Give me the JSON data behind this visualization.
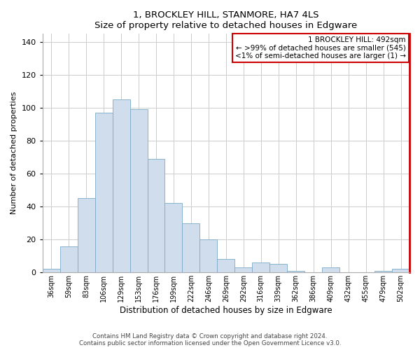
{
  "title": "1, BROCKLEY HILL, STANMORE, HA7 4LS",
  "subtitle": "Size of property relative to detached houses in Edgware",
  "xlabel": "Distribution of detached houses by size in Edgware",
  "ylabel": "Number of detached properties",
  "bar_color": "#cfdded",
  "bar_edge_color": "#7aaac8",
  "grid_color": "#cccccc",
  "bin_labels": [
    "36sqm",
    "59sqm",
    "83sqm",
    "106sqm",
    "129sqm",
    "153sqm",
    "176sqm",
    "199sqm",
    "222sqm",
    "246sqm",
    "269sqm",
    "292sqm",
    "316sqm",
    "339sqm",
    "362sqm",
    "386sqm",
    "409sqm",
    "432sqm",
    "455sqm",
    "479sqm",
    "502sqm"
  ],
  "bar_heights": [
    2,
    16,
    45,
    97,
    105,
    99,
    69,
    42,
    30,
    20,
    8,
    3,
    6,
    5,
    1,
    0,
    3,
    0,
    0,
    1,
    2
  ],
  "ylim": [
    0,
    145
  ],
  "yticks": [
    0,
    20,
    40,
    60,
    80,
    100,
    120,
    140
  ],
  "marker_color": "#cc0000",
  "annotation_title": "1 BROCKLEY HILL: 492sqm",
  "annotation_line1": "← >99% of detached houses are smaller (545)",
  "annotation_line2": "<1% of semi-detached houses are larger (1) →",
  "annotation_box_color": "#ffffff",
  "annotation_box_edge": "#cc0000",
  "footer1": "Contains HM Land Registry data © Crown copyright and database right 2024.",
  "footer2": "Contains public sector information licensed under the Open Government Licence v3.0."
}
